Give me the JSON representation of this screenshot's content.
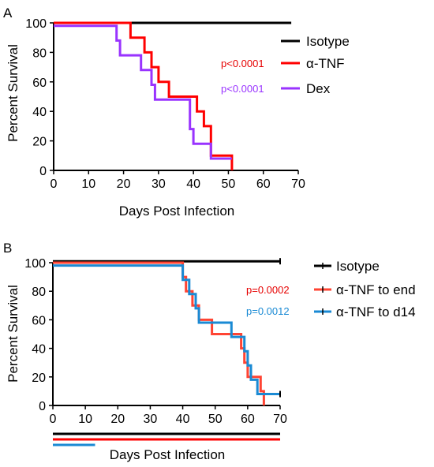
{
  "chart_data": [
    {
      "panel_label": "A",
      "type": "line",
      "step": true,
      "xlabel": "Days Post Infection",
      "ylabel": "Percent Survival",
      "xlim": [
        0,
        70
      ],
      "ylim": [
        0,
        100
      ],
      "xticks": [
        0,
        10,
        20,
        30,
        40,
        50,
        60,
        70
      ],
      "yticks": [
        0,
        20,
        40,
        60,
        80,
        100
      ],
      "legend_position": "right",
      "series": [
        {
          "name": "Isotype",
          "color": "#000000",
          "points": [
            [
              0,
              100
            ],
            [
              68,
              100
            ]
          ],
          "pvalue": ""
        },
        {
          "name": "α-TNF",
          "color": "#ff0000",
          "points": [
            [
              0,
              100
            ],
            [
              22,
              100
            ],
            [
              22,
              90
            ],
            [
              26,
              90
            ],
            [
              26,
              80
            ],
            [
              28,
              80
            ],
            [
              28,
              70
            ],
            [
              30,
              70
            ],
            [
              30,
              60
            ],
            [
              33,
              60
            ],
            [
              33,
              50
            ],
            [
              41,
              50
            ],
            [
              41,
              40
            ],
            [
              43,
              40
            ],
            [
              43,
              30
            ],
            [
              45,
              30
            ],
            [
              45,
              10
            ],
            [
              51,
              10
            ],
            [
              51,
              0
            ]
          ],
          "pvalue": "p<0.0001",
          "pvalue_color": "#e60000"
        },
        {
          "name": "Dex",
          "color": "#9933ff",
          "points": [
            [
              0,
              98
            ],
            [
              18,
              98
            ],
            [
              18,
              88
            ],
            [
              19,
              88
            ],
            [
              19,
              78
            ],
            [
              25,
              78
            ],
            [
              25,
              68
            ],
            [
              28,
              68
            ],
            [
              28,
              58
            ],
            [
              29,
              58
            ],
            [
              29,
              48
            ],
            [
              39,
              48
            ],
            [
              39,
              28
            ],
            [
              40,
              28
            ],
            [
              40,
              18
            ],
            [
              45,
              18
            ],
            [
              45,
              8
            ],
            [
              51,
              8
            ]
          ],
          "pvalue": "p<0.0001",
          "pvalue_color": "#9933ff"
        }
      ]
    },
    {
      "panel_label": "B",
      "type": "line",
      "step": true,
      "xlabel": "Days Post Infection",
      "ylabel": "Percent Survival",
      "xlim": [
        0,
        70
      ],
      "ylim": [
        0,
        100
      ],
      "xticks": [
        0,
        10,
        20,
        30,
        40,
        50,
        60,
        70
      ],
      "yticks": [
        0,
        20,
        40,
        60,
        80,
        100
      ],
      "legend_position": "right",
      "series": [
        {
          "name": "Isotype",
          "color": "#000000",
          "points": [
            [
              0,
              101
            ],
            [
              70,
              101
            ]
          ],
          "pvalue": ""
        },
        {
          "name": "α-TNF to end",
          "color": "#ff4433",
          "points": [
            [
              0,
              100
            ],
            [
              40,
              100
            ],
            [
              40,
              90
            ],
            [
              41,
              90
            ],
            [
              41,
              80
            ],
            [
              43,
              80
            ],
            [
              43,
              70
            ],
            [
              45,
              70
            ],
            [
              45,
              60
            ],
            [
              49,
              60
            ],
            [
              49,
              50
            ],
            [
              58,
              50
            ],
            [
              58,
              40
            ],
            [
              59,
              40
            ],
            [
              59,
              30
            ],
            [
              60,
              30
            ],
            [
              60,
              20
            ],
            [
              64,
              20
            ],
            [
              64,
              10
            ],
            [
              65,
              10
            ],
            [
              65,
              0
            ]
          ],
          "pvalue": "p=0.0002",
          "pvalue_color": "#e60000"
        },
        {
          "name": "α-TNF to d14",
          "color": "#1a8ad4",
          "points": [
            [
              0,
              98
            ],
            [
              40,
              98
            ],
            [
              40,
              88
            ],
            [
              42,
              88
            ],
            [
              42,
              78
            ],
            [
              44,
              78
            ],
            [
              44,
              68
            ],
            [
              45,
              68
            ],
            [
              45,
              58
            ],
            [
              55,
              58
            ],
            [
              55,
              48
            ],
            [
              59,
              48
            ],
            [
              59,
              38
            ],
            [
              60,
              38
            ],
            [
              60,
              28
            ],
            [
              61,
              28
            ],
            [
              61,
              18
            ],
            [
              63,
              18
            ],
            [
              63,
              8
            ],
            [
              70,
              8
            ]
          ],
          "pvalue": "p=0.0012",
          "pvalue_color": "#1a8ad4"
        }
      ],
      "treatment_bars": [
        {
          "series": "Isotype",
          "color": "#000000",
          "range": [
            0,
            70
          ]
        },
        {
          "series": "α-TNF to end",
          "color": "#ff0000",
          "range": [
            0,
            70
          ]
        },
        {
          "series": "α-TNF to d14",
          "color": "#1a8ad4",
          "range": [
            0,
            13
          ]
        }
      ]
    }
  ]
}
